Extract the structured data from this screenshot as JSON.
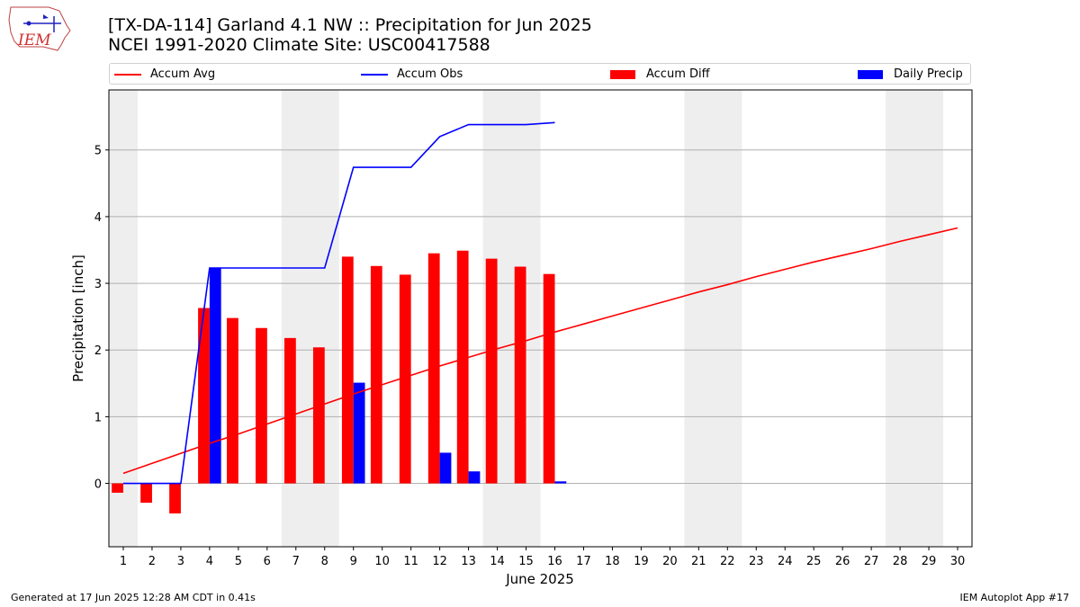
{
  "header": {
    "logo_text": "IEM",
    "title_line1": "[TX-DA-114] Garland 4.1 NW :: Precipitation for Jun 2025",
    "title_line2": "NCEI 1991-2020 Climate Site: USC00417588"
  },
  "footer": {
    "generated": "Generated at 17 Jun 2025 12:28 AM CDT in 0.41s",
    "app": "IEM Autoplot App #17"
  },
  "colors": {
    "accum_avg": "#ff0000",
    "accum_obs": "#0000ff",
    "accum_diff": "#ff0000",
    "daily_precip": "#0000ff",
    "weekend_band": "#eeeeee",
    "grid": "#b0b0b0"
  },
  "chart_data": {
    "type": "bar",
    "xlabel": "June 2025",
    "ylabel": "Precipitation [inch]",
    "xlim": [
      0.5,
      30.5
    ],
    "ylim": [
      -0.95,
      5.9
    ],
    "grid": true,
    "legend_placement": "top",
    "x": [
      1,
      2,
      3,
      4,
      5,
      6,
      7,
      8,
      9,
      10,
      11,
      12,
      13,
      14,
      15,
      16,
      17,
      18,
      19,
      20,
      21,
      22,
      23,
      24,
      25,
      26,
      27,
      28,
      29,
      30
    ],
    "x_ticks": [
      1,
      2,
      3,
      4,
      5,
      6,
      7,
      8,
      9,
      10,
      11,
      12,
      13,
      14,
      15,
      16,
      17,
      18,
      19,
      20,
      21,
      22,
      23,
      24,
      25,
      26,
      27,
      28,
      29,
      30
    ],
    "y_ticks": [
      0,
      1,
      2,
      3,
      4,
      5
    ],
    "weekend_bands": [
      [
        0.5,
        1.5
      ],
      [
        6.5,
        8.5
      ],
      [
        13.5,
        15.5
      ],
      [
        20.5,
        22.5
      ],
      [
        27.5,
        29.5
      ]
    ],
    "series": [
      {
        "name": "Accum Avg",
        "kind": "line",
        "x": [
          1,
          2,
          3,
          4,
          5,
          6,
          7,
          8,
          9,
          10,
          11,
          12,
          13,
          14,
          15,
          16,
          17,
          18,
          19,
          20,
          21,
          22,
          23,
          24,
          25,
          26,
          27,
          28,
          29,
          30
        ],
        "values": [
          0.15,
          0.3,
          0.45,
          0.6,
          0.74,
          0.89,
          1.04,
          1.19,
          1.34,
          1.48,
          1.62,
          1.76,
          1.89,
          2.02,
          2.14,
          2.27,
          2.39,
          2.51,
          2.63,
          2.75,
          2.87,
          2.98,
          3.1,
          3.21,
          3.32,
          3.42,
          3.52,
          3.63,
          3.73,
          3.83
        ]
      },
      {
        "name": "Accum Obs",
        "kind": "line",
        "x": [
          1,
          2,
          3,
          4,
          5,
          6,
          7,
          8,
          9,
          10,
          11,
          12,
          13,
          14,
          15,
          16
        ],
        "values": [
          0,
          0,
          0,
          3.23,
          3.23,
          3.23,
          3.23,
          3.23,
          4.74,
          4.74,
          4.74,
          5.2,
          5.38,
          5.38,
          5.38,
          5.41
        ]
      },
      {
        "name": "Accum Diff",
        "kind": "bar",
        "x": [
          1,
          2,
          3,
          4,
          5,
          6,
          7,
          8,
          9,
          10,
          11,
          12,
          13,
          14,
          15,
          16
        ],
        "values": [
          -0.14,
          -0.29,
          -0.45,
          2.63,
          2.48,
          2.33,
          2.18,
          2.04,
          3.4,
          3.26,
          3.13,
          3.45,
          3.49,
          3.37,
          3.25,
          3.14
        ]
      },
      {
        "name": "Daily Precip",
        "kind": "bar",
        "x": [
          1,
          2,
          3,
          4,
          5,
          6,
          7,
          8,
          9,
          10,
          11,
          12,
          13,
          14,
          15,
          16
        ],
        "values": [
          0,
          0,
          0,
          3.23,
          0,
          0,
          0,
          0,
          1.51,
          0,
          0,
          0.46,
          0.18,
          0,
          0,
          0.03
        ]
      }
    ]
  }
}
